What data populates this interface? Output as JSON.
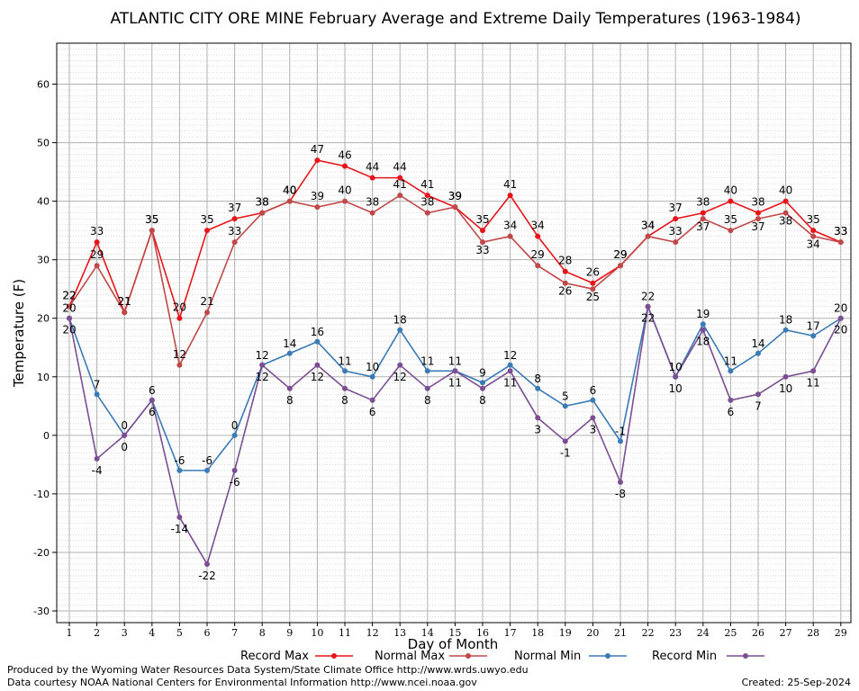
{
  "chart_data": {
    "type": "line",
    "title": "ATLANTIC CITY ORE MINE February Average and Extreme Daily Temperatures (1963-1984)",
    "xlabel": "Day of Month",
    "ylabel": "Temperature (F)",
    "x": [
      1,
      2,
      3,
      4,
      5,
      6,
      7,
      8,
      9,
      10,
      11,
      12,
      13,
      14,
      15,
      16,
      17,
      18,
      19,
      20,
      21,
      22,
      23,
      24,
      25,
      26,
      27,
      28,
      29
    ],
    "ylim": [
      -32,
      67
    ],
    "yticks": [
      -30,
      -20,
      -10,
      0,
      10,
      20,
      30,
      40,
      50,
      60
    ],
    "grid": true,
    "legend_position": "bottom",
    "series": [
      {
        "name": "Record Max",
        "color": "#e8141a",
        "values": [
          22,
          33,
          21,
          35,
          20,
          35,
          37,
          38,
          40,
          47,
          46,
          44,
          44,
          41,
          39,
          35,
          41,
          34,
          28,
          26,
          29,
          34,
          37,
          38,
          40,
          38,
          40,
          35,
          33
        ]
      },
      {
        "name": "Normal Max",
        "color": "#c04848",
        "values": [
          22,
          29,
          21,
          35,
          12,
          21,
          33,
          38,
          40,
          39,
          40,
          38,
          41,
          38,
          39,
          33,
          34,
          29,
          26,
          25,
          29,
          34,
          33,
          37,
          35,
          37,
          38,
          34,
          33
        ]
      },
      {
        "name": "Normal Min",
        "color": "#3a7ab5",
        "values": [
          20,
          7,
          0,
          6,
          -6,
          -6,
          0,
          12,
          14,
          16,
          11,
          10,
          18,
          11,
          11,
          9,
          12,
          8,
          5,
          6,
          -1,
          22,
          10,
          19,
          11,
          14,
          18,
          17,
          20
        ]
      },
      {
        "name": "Record Min",
        "color": "#7b4d92",
        "values": [
          20,
          -4,
          0,
          6,
          -14,
          -22,
          -6,
          12,
          8,
          12,
          8,
          6,
          12,
          8,
          11,
          8,
          11,
          3,
          -1,
          3,
          -8,
          22,
          10,
          18,
          6,
          7,
          10,
          11,
          20
        ]
      }
    ]
  },
  "footer": {
    "credit_line1": "Produced by the Wyoming Water Resources Data System/State Climate Office http://www.wrds.uwyo.edu",
    "credit_line2": "Data courtesy NOAA National Centers for Environmental Information http://www.ncei.noaa.gov",
    "created": "Created: 25-Sep-2024"
  }
}
